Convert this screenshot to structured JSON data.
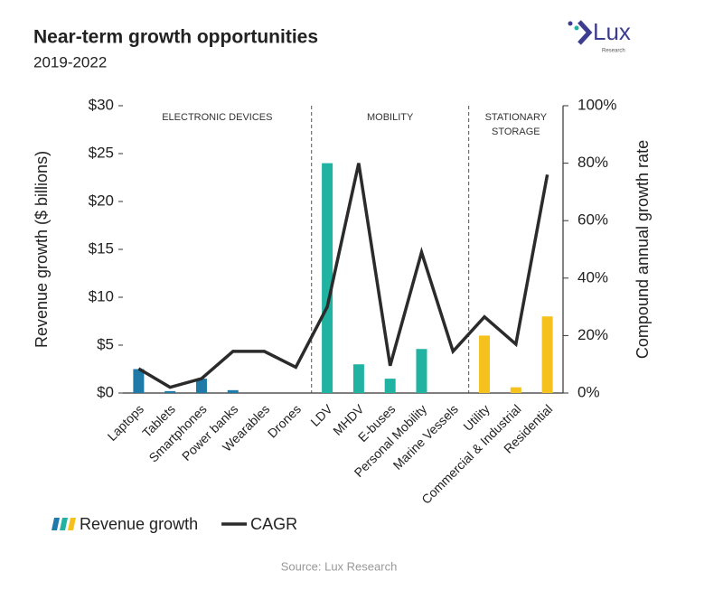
{
  "chart_data": {
    "type": "bar",
    "title": "Near-term growth opportunities",
    "subtitle": "2019-2022",
    "logo": {
      "text": "Lux",
      "sub": "Research"
    },
    "ylabel": "Revenue growth ($ billions)",
    "y2label": "Compound annual growth rate",
    "source": "Source: Lux Research",
    "groups": [
      [
        "ELECTRONIC DEVICES"
      ],
      [
        "MOBILITY"
      ],
      [
        "STATIONARY",
        "STORAGE"
      ]
    ],
    "categories": [
      "Laptops",
      "Tablets",
      "Smartphones",
      "Power banks",
      "Wearables",
      "Drones",
      "LDV",
      "MHDV",
      "E-buses",
      "Personal Mobility",
      "Marine Vessels",
      "Utility",
      "Commercial & Industrial",
      "Residential"
    ],
    "series": [
      {
        "name": "Revenue growth",
        "type": "bar",
        "colors": [
          "#1f7aa8",
          "#1f7aa8",
          "#1f7aa8",
          "#1f7aa8",
          "#1f7aa8",
          "#1f7aa8",
          "#21b3a2",
          "#21b3a2",
          "#21b3a2",
          "#21b3a2",
          "#21b3a2",
          "#f5c11c",
          "#f5c11c",
          "#f5c11c"
        ],
        "values": [
          2.5,
          0.2,
          1.5,
          0.3,
          0,
          0,
          24,
          3,
          1.5,
          4.6,
          0,
          6,
          0.6,
          8
        ]
      },
      {
        "name": "CAGR",
        "type": "line",
        "axis": "y2",
        "color": "#2b2b2b",
        "values": [
          8.5,
          2,
          5,
          14.5,
          14.5,
          9,
          30,
          80,
          9.5,
          49,
          14.5,
          26.5,
          17,
          76
        ]
      }
    ],
    "ylim": [
      0,
      30
    ],
    "yticks": [
      {
        "value": 0,
        "label": "$0"
      },
      {
        "value": 5,
        "label": "$5"
      },
      {
        "value": 10,
        "label": "$10"
      },
      {
        "value": 15,
        "label": "$15"
      },
      {
        "value": 20,
        "label": "$20"
      },
      {
        "value": 25,
        "label": "$25"
      },
      {
        "value": 30,
        "label": "$30"
      }
    ],
    "y2lim": [
      0,
      100
    ],
    "y2ticks": [
      {
        "value": 0,
        "label": "0%"
      },
      {
        "value": 20,
        "label": "20%"
      },
      {
        "value": 40,
        "label": "40%"
      },
      {
        "value": 60,
        "label": "60%"
      },
      {
        "value": 80,
        "label": "80%"
      },
      {
        "value": 100,
        "label": "100%"
      }
    ]
  }
}
